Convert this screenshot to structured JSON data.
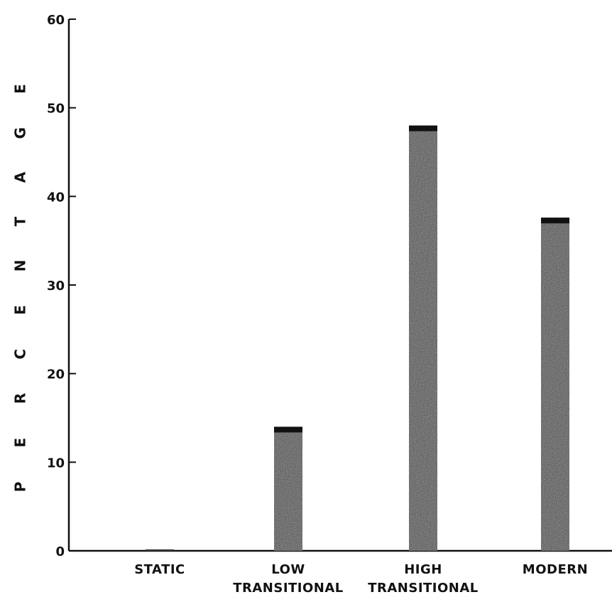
{
  "chart_data": {
    "type": "bar",
    "categories": [
      "STATIC",
      "LOW\nTRANSITIONAL",
      "HIGH\nTRANSITIONAL",
      "MODERN"
    ],
    "values": [
      0,
      14,
      48,
      37.6
    ],
    "title": "",
    "xlabel": "",
    "ylabel": "PERCENTAGE",
    "ylim": [
      0,
      60
    ],
    "yticks": [
      0,
      10,
      20,
      30,
      40,
      50,
      60
    ],
    "grid": false,
    "bar_color": "#3a3a3a"
  }
}
